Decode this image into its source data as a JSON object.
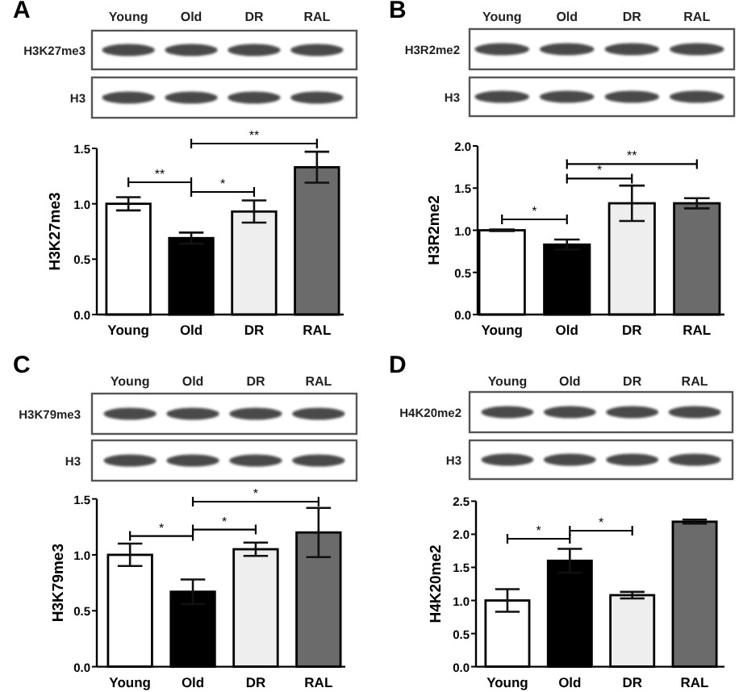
{
  "chart_data": [
    {
      "type": "bar",
      "title": "A",
      "ylabel": "H3K27me3",
      "categories": [
        "Young",
        "Old",
        "DR",
        "RAL"
      ],
      "values": [
        1.0,
        0.69,
        0.93,
        1.33
      ],
      "errors": [
        0.06,
        0.05,
        0.1,
        0.14
      ],
      "colors": [
        "#ffffff",
        "#000000",
        "#eeeeee",
        "#6b6b6b"
      ],
      "ylim": [
        0,
        1.5
      ],
      "yticks": [
        {
          "value": 0,
          "label": "0.0"
        },
        0.5,
        {
          "value": 1,
          "label": "1.0"
        },
        1.5
      ],
      "annotations": [
        "H3K27me3",
        "H3",
        "**",
        "*",
        "**"
      ]
    },
    {
      "type": "bar",
      "title": "B",
      "ylabel": "H3R2me2",
      "categories": [
        "Young",
        "Old",
        "DR",
        "RAL"
      ],
      "values": [
        1.0,
        0.83,
        1.32,
        1.32
      ],
      "errors": [
        0.01,
        0.06,
        0.21,
        0.06
      ],
      "colors": [
        "#ffffff",
        "#000000",
        "#eeeeee",
        "#6b6b6b"
      ],
      "ylim": [
        0,
        2
      ],
      "yticks": [
        {
          "value": 0,
          "label": "0.0"
        },
        0.5,
        {
          "value": 1,
          "label": "1.0"
        },
        1.5,
        {
          "value": 2,
          "label": "2.0"
        }
      ],
      "annotations": [
        "H3R2me2",
        "H3",
        "*",
        "*",
        "**"
      ]
    },
    {
      "type": "bar",
      "title": "C",
      "ylabel": "H3K79me3",
      "categories": [
        "Young",
        "Old",
        "DR",
        "RAL"
      ],
      "values": [
        1.0,
        0.67,
        1.05,
        1.2
      ],
      "errors": [
        0.1,
        0.11,
        0.06,
        0.22
      ],
      "colors": [
        "#ffffff",
        "#000000",
        "#eeeeee",
        "#6b6b6b"
      ],
      "ylim": [
        0,
        1.5
      ],
      "yticks": [
        {
          "value": 0,
          "label": "0.0"
        },
        0.5,
        {
          "value": 1,
          "label": "1.0"
        },
        1.5
      ],
      "annotations": [
        "H3K79me3",
        "H3",
        "*",
        "*",
        "*"
      ]
    },
    {
      "type": "bar",
      "title": "D",
      "ylabel": "H4K20me2",
      "categories": [
        "Young",
        "Old",
        "DR",
        "RAL"
      ],
      "values": [
        1.0,
        1.6,
        1.08,
        2.19
      ],
      "errors": [
        0.17,
        0.18,
        0.05,
        0.03
      ],
      "colors": [
        "#ffffff",
        "#000000",
        "#eeeeee",
        "#6b6b6b"
      ],
      "ylim": [
        0,
        2.5
      ],
      "yticks": [
        {
          "value": 0,
          "label": "0.0"
        },
        0.5,
        {
          "value": 1,
          "label": "1.0"
        },
        1.5,
        {
          "value": 2,
          "label": "2.0"
        },
        2.5
      ],
      "annotations": [
        "H4K20me2",
        "H3",
        "*",
        "*"
      ]
    }
  ]
}
